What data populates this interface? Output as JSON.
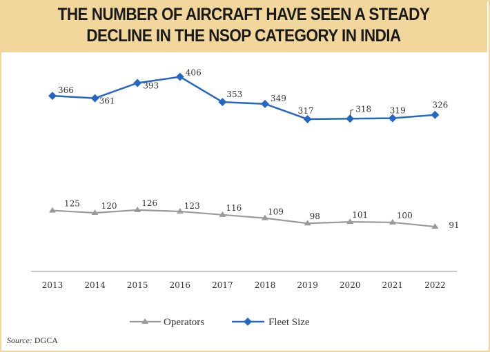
{
  "header": {
    "title_line1": "THE NUMBER OF AIRCRAFT HAVE SEEN A STEADY",
    "title_line2": "DECLINE IN THE NSOP CATEGORY IN INDIA"
  },
  "source": {
    "label": "Source:",
    "value": "DGCA"
  },
  "colors": {
    "header_bg": "#f1d79b",
    "fleet": "#2468c4",
    "operators": "#9a9a9a",
    "axis": "#b3b3b3"
  },
  "chart_data": {
    "type": "line",
    "title": "THE NUMBER OF AIRCRAFT HAVE SEEN A STEADY DECLINE IN THE NSOP CATEGORY IN INDIA",
    "xlabel": "",
    "ylabel": "",
    "categories": [
      "2013",
      "2014",
      "2015",
      "2016",
      "2017",
      "2018",
      "2019",
      "2020",
      "2021",
      "2022"
    ],
    "series": [
      {
        "name": "Operators",
        "marker": "triangle",
        "color": "#9a9a9a",
        "values": [
          125,
          120,
          126,
          123,
          116,
          109,
          98,
          101,
          100,
          91
        ]
      },
      {
        "name": "Fleet Size",
        "marker": "diamond",
        "color": "#2468c4",
        "values": [
          366,
          361,
          393,
          406,
          353,
          349,
          317,
          318,
          319,
          326
        ]
      }
    ],
    "ylim": [
      10,
      440
    ],
    "grid": false,
    "y_axis_visible": false,
    "legend": {
      "position": "bottom",
      "entries": [
        "Operators",
        "Fleet Size"
      ]
    },
    "source": "DGCA"
  }
}
